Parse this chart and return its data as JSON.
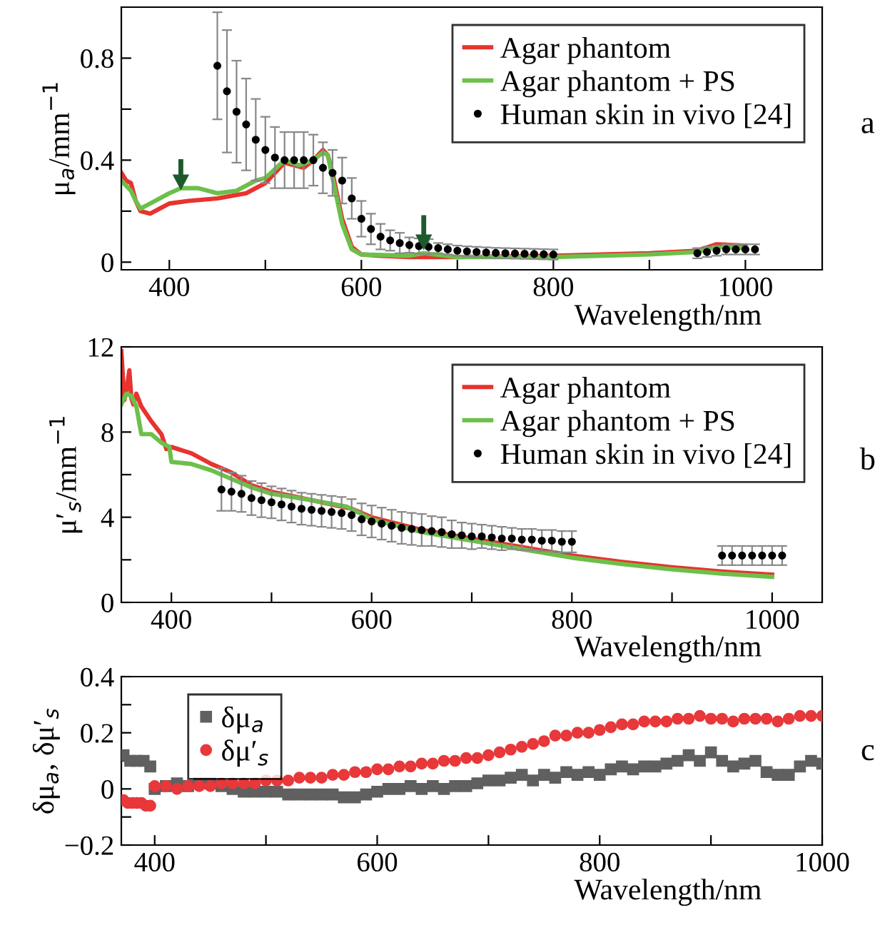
{
  "chart_data": [
    {
      "type": "line",
      "xlabel": "Wavelength/nm",
      "ylabel": "μ$_{a}$/mm$^{−1}$",
      "xlim": [
        350,
        1080
      ],
      "ylim": [
        -0.03,
        1.0
      ],
      "xticks": [
        400,
        {
          "value": 500,
          "label": null
        },
        600,
        {
          "value": 700,
          "label": null
        },
        800,
        {
          "value": 900,
          "label": null
        },
        1000
      ],
      "yticks": [
        0,
        {
          "value": 0.2,
          "label": null
        },
        0.4,
        {
          "value": 0.6,
          "label": null
        },
        0.8
      ],
      "legend": "top right",
      "annotations": [
        "a"
      ],
      "series": [
        {
          "name": "Agar phantom",
          "color": "#e8332e",
          "type": "line",
          "x": [
            350,
            355,
            360,
            365,
            370,
            380,
            390,
            400,
            420,
            450,
            480,
            500,
            520,
            540,
            550,
            560,
            565,
            570,
            580,
            590,
            600,
            620,
            650,
            700,
            800,
            900,
            950,
            970,
            1000
          ],
          "values": [
            0.35,
            0.32,
            0.31,
            0.24,
            0.2,
            0.19,
            0.21,
            0.23,
            0.24,
            0.25,
            0.27,
            0.31,
            0.39,
            0.37,
            0.4,
            0.44,
            0.42,
            0.35,
            0.17,
            0.06,
            0.03,
            0.025,
            0.02,
            0.02,
            0.025,
            0.035,
            0.045,
            0.07,
            0.065
          ]
        },
        {
          "name": "Agar phantom + PS",
          "color": "#6cc04a",
          "type": "line",
          "x": [
            350,
            355,
            360,
            365,
            370,
            380,
            390,
            400,
            412,
            430,
            450,
            470,
            490,
            500,
            520,
            535,
            550,
            560,
            565,
            570,
            580,
            590,
            600,
            650,
            665,
            700,
            800,
            900,
            950,
            970,
            1000
          ],
          "values": [
            0.32,
            0.3,
            0.28,
            0.24,
            0.21,
            0.23,
            0.25,
            0.27,
            0.29,
            0.29,
            0.27,
            0.28,
            0.32,
            0.33,
            0.4,
            0.38,
            0.4,
            0.43,
            0.42,
            0.33,
            0.15,
            0.05,
            0.03,
            0.025,
            0.035,
            0.02,
            0.02,
            0.03,
            0.04,
            0.06,
            0.055
          ]
        },
        {
          "name": "Human skin in vivo [24]",
          "color": "#000000",
          "type": "scatter",
          "marker": "circle",
          "x": [
            450,
            460,
            470,
            480,
            490,
            500,
            510,
            520,
            530,
            540,
            550,
            560,
            570,
            580,
            590,
            600,
            610,
            620,
            630,
            640,
            650,
            660,
            670,
            680,
            690,
            700,
            710,
            720,
            730,
            740,
            750,
            760,
            770,
            780,
            790,
            800,
            950,
            960,
            970,
            980,
            990,
            1000,
            1010
          ],
          "values": [
            0.77,
            0.67,
            0.59,
            0.54,
            0.48,
            0.44,
            0.41,
            0.4,
            0.4,
            0.4,
            0.4,
            0.37,
            0.35,
            0.32,
            0.25,
            0.17,
            0.13,
            0.1,
            0.085,
            0.075,
            0.067,
            0.063,
            0.06,
            0.055,
            0.05,
            0.045,
            0.042,
            0.04,
            0.038,
            0.036,
            0.035,
            0.034,
            0.033,
            0.032,
            0.031,
            0.03,
            0.035,
            0.04,
            0.045,
            0.05,
            0.05,
            0.05,
            0.05
          ],
          "errors": [
            0.21,
            0.24,
            0.2,
            0.18,
            0.16,
            0.13,
            0.12,
            0.11,
            0.11,
            0.11,
            0.1,
            0.1,
            0.09,
            0.09,
            0.08,
            0.07,
            0.06,
            0.05,
            0.04,
            0.04,
            0.03,
            0.03,
            0.03,
            0.02,
            0.02,
            0.02,
            0.02,
            0.02,
            0.02,
            0.02,
            0.02,
            0.02,
            0.02,
            0.02,
            0.02,
            0.02,
            0.02,
            0.02,
            0.02,
            0.02,
            0.02,
            0.02,
            0.02
          ]
        }
      ]
    },
    {
      "type": "line",
      "xlabel": "Wavelength/nm",
      "ylabel": "μ′$_{s}$/mm$^{−1}$",
      "xlim": [
        350,
        1050
      ],
      "ylim": [
        0,
        12
      ],
      "xticks": [
        400,
        {
          "value": 500,
          "label": null
        },
        600,
        {
          "value": 700,
          "label": null
        },
        800,
        {
          "value": 900,
          "label": null
        },
        1000
      ],
      "yticks": [
        0,
        {
          "value": 2,
          "label": null
        },
        4,
        {
          "value": 6,
          "label": null
        },
        8,
        {
          "value": 10,
          "label": null
        },
        12
      ],
      "legend": "top right",
      "annotations": [
        "b"
      ],
      "series": [
        {
          "name": "Agar phantom",
          "color": "#e8332e",
          "type": "line",
          "x": [
            350,
            353,
            356,
            358,
            360,
            362,
            365,
            370,
            380,
            390,
            395,
            400,
            420,
            440,
            460,
            480,
            500,
            540,
            570,
            580,
            600,
            650,
            700,
            750,
            800,
            850,
            900,
            950,
            1000
          ],
          "values": [
            11.8,
            9.5,
            10.2,
            10.9,
            9.6,
            9.3,
            9.8,
            9.2,
            8.5,
            7.9,
            7.2,
            7.3,
            7.0,
            6.5,
            6.1,
            5.5,
            5.2,
            4.8,
            4.5,
            4.4,
            4.0,
            3.4,
            3.0,
            2.6,
            2.2,
            1.9,
            1.65,
            1.45,
            1.3
          ]
        },
        {
          "name": "Agar phantom + PS",
          "color": "#6cc04a",
          "type": "line",
          "x": [
            350,
            355,
            360,
            365,
            370,
            380,
            390,
            398,
            400,
            420,
            440,
            460,
            480,
            500,
            540,
            575,
            600,
            650,
            700,
            750,
            800,
            850,
            900,
            950,
            1000
          ],
          "values": [
            9.3,
            9.8,
            9.7,
            9.2,
            7.9,
            7.9,
            7.5,
            7.3,
            6.6,
            6.5,
            6.2,
            5.8,
            5.4,
            5.1,
            4.8,
            4.5,
            3.9,
            3.3,
            2.9,
            2.5,
            2.1,
            1.8,
            1.55,
            1.35,
            1.2
          ]
        },
        {
          "name": "Human skin in vivo [24]",
          "color": "#000000",
          "type": "scatter",
          "marker": "circle",
          "x": [
            450,
            460,
            470,
            480,
            490,
            500,
            510,
            520,
            530,
            540,
            550,
            560,
            570,
            580,
            590,
            600,
            610,
            620,
            630,
            640,
            650,
            660,
            670,
            680,
            690,
            700,
            710,
            720,
            730,
            740,
            750,
            760,
            770,
            780,
            790,
            800,
            950,
            960,
            970,
            980,
            990,
            1000,
            1010
          ],
          "values": [
            5.3,
            5.2,
            5.1,
            4.9,
            4.8,
            4.7,
            4.6,
            4.5,
            4.4,
            4.35,
            4.3,
            4.25,
            4.2,
            4.1,
            3.9,
            3.8,
            3.7,
            3.6,
            3.5,
            3.45,
            3.4,
            3.35,
            3.3,
            3.2,
            3.15,
            3.1,
            3.1,
            3.05,
            3.0,
            3.0,
            2.95,
            2.95,
            2.9,
            2.9,
            2.85,
            2.85,
            2.2,
            2.2,
            2.2,
            2.2,
            2.2,
            2.2,
            2.2
          ],
          "errors": [
            1.0,
            0.9,
            0.85,
            0.8,
            0.8,
            0.75,
            0.75,
            0.75,
            0.75,
            0.75,
            0.75,
            0.75,
            0.75,
            0.75,
            0.75,
            0.75,
            0.75,
            0.75,
            0.75,
            0.75,
            0.75,
            0.7,
            0.7,
            0.65,
            0.6,
            0.6,
            0.55,
            0.55,
            0.55,
            0.5,
            0.5,
            0.5,
            0.5,
            0.5,
            0.5,
            0.5,
            0.45,
            0.45,
            0.45,
            0.45,
            0.45,
            0.45,
            0.45
          ]
        }
      ]
    },
    {
      "type": "scatter",
      "xlabel": "Wavelength/nm",
      "ylabel": "δμ$_{a}$, δμ′$_{s}$",
      "xlim": [
        370,
        1000
      ],
      "ylim": [
        -0.2,
        0.4
      ],
      "xticks": [
        400,
        {
          "value": 500,
          "label": null
        },
        600,
        {
          "value": 700,
          "label": null
        },
        800,
        {
          "value": 900,
          "label": null
        },
        1000
      ],
      "yticks": [
        -0.2,
        {
          "value": -0.1,
          "label": null
        },
        0,
        {
          "value": 0.1,
          "label": null
        },
        0.2,
        {
          "value": 0.3,
          "label": null
        },
        0.4
      ],
      "legend": "top left",
      "annotations": [
        "c"
      ],
      "series": [
        {
          "name": "δμ$_{a}$",
          "color": "#606060",
          "marker": "square",
          "x": [
            372,
            378,
            384,
            390,
            396,
            400,
            410,
            420,
            430,
            440,
            450,
            460,
            470,
            480,
            490,
            500,
            510,
            520,
            530,
            540,
            550,
            560,
            570,
            580,
            590,
            600,
            610,
            620,
            630,
            640,
            650,
            660,
            670,
            680,
            690,
            700,
            710,
            720,
            730,
            740,
            750,
            760,
            770,
            780,
            790,
            800,
            810,
            820,
            830,
            840,
            850,
            860,
            870,
            880,
            890,
            900,
            910,
            920,
            930,
            940,
            950,
            960,
            970,
            980,
            990,
            1000
          ],
          "values": [
            0.12,
            0.1,
            0.1,
            0.1,
            0.08,
            0.0,
            0.01,
            0.02,
            0.01,
            0.02,
            0.02,
            0.01,
            0.0,
            -0.01,
            -0.01,
            -0.01,
            -0.01,
            -0.02,
            -0.02,
            -0.02,
            -0.02,
            -0.02,
            -0.03,
            -0.03,
            -0.02,
            -0.01,
            0.0,
            0.0,
            0.01,
            0.0,
            0.01,
            0.0,
            0.01,
            0.01,
            0.02,
            0.03,
            0.03,
            0.04,
            0.05,
            0.03,
            0.05,
            0.04,
            0.06,
            0.05,
            0.06,
            0.05,
            0.07,
            0.08,
            0.07,
            0.08,
            0.08,
            0.09,
            0.1,
            0.12,
            0.1,
            0.13,
            0.1,
            0.08,
            0.09,
            0.1,
            0.06,
            0.05,
            0.05,
            0.08,
            0.1,
            0.09
          ]
        },
        {
          "name": "δμ′$_{s}$",
          "color": "#e8383a",
          "marker": "circle",
          "x": [
            372,
            376,
            380,
            384,
            388,
            392,
            396,
            400,
            410,
            420,
            430,
            440,
            450,
            460,
            470,
            480,
            490,
            500,
            510,
            520,
            530,
            540,
            550,
            560,
            570,
            580,
            590,
            600,
            610,
            620,
            630,
            640,
            650,
            660,
            670,
            680,
            690,
            700,
            710,
            720,
            730,
            740,
            750,
            760,
            770,
            780,
            790,
            800,
            810,
            820,
            830,
            840,
            850,
            860,
            870,
            880,
            890,
            900,
            910,
            920,
            930,
            940,
            950,
            960,
            970,
            980,
            990,
            1000
          ],
          "values": [
            -0.04,
            -0.05,
            -0.05,
            -0.05,
            -0.05,
            -0.06,
            -0.06,
            0.01,
            0.01,
            0.0,
            0.01,
            0.01,
            0.01,
            0.02,
            0.02,
            0.02,
            0.02,
            0.03,
            0.03,
            0.03,
            0.04,
            0.04,
            0.04,
            0.05,
            0.05,
            0.06,
            0.06,
            0.07,
            0.07,
            0.08,
            0.08,
            0.09,
            0.09,
            0.1,
            0.1,
            0.11,
            0.11,
            0.12,
            0.13,
            0.14,
            0.15,
            0.16,
            0.17,
            0.19,
            0.19,
            0.2,
            0.2,
            0.21,
            0.22,
            0.23,
            0.23,
            0.24,
            0.24,
            0.24,
            0.25,
            0.25,
            0.26,
            0.25,
            0.25,
            0.24,
            0.25,
            0.25,
            0.25,
            0.24,
            0.25,
            0.26,
            0.26,
            0.26
          ]
        }
      ]
    }
  ]
}
